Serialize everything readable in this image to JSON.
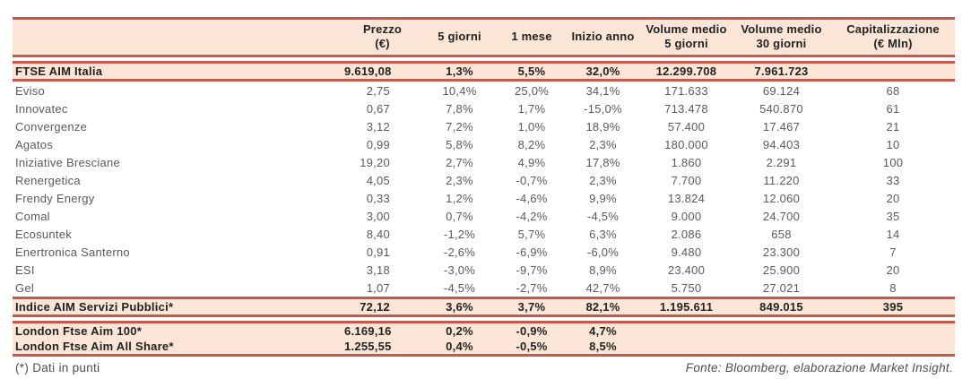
{
  "colors": {
    "accent_border": "#c7594c",
    "band_fill": "#fbe5d7",
    "regular_text": "#5a5a5c",
    "bold_text": "#222222"
  },
  "table": {
    "header": {
      "name_col": "",
      "cols": [
        {
          "line1": "Prezzo",
          "line2": "(€)"
        },
        {
          "line1": "5 giorni",
          "line2": ""
        },
        {
          "line1": "1 mese",
          "line2": ""
        },
        {
          "line1": "Inizio anno",
          "line2": ""
        },
        {
          "line1": "Volume medio",
          "line2": "5 giorni"
        },
        {
          "line1": "Volume medio",
          "line2": "30 giorni"
        },
        {
          "line1": "Capitalizzazione",
          "line2": "(€ Mln)"
        }
      ]
    },
    "sections": [
      {
        "type": "band",
        "gap_before": true,
        "rows": [
          {
            "name": "FTSE AIM Italia",
            "cells": [
              "9.619,08",
              "1,3%",
              "5,5%",
              "32,0%",
              "12.299.708",
              "7.961.723",
              ""
            ]
          }
        ]
      },
      {
        "type": "plain",
        "gap_before": false,
        "rows": [
          {
            "name": "Eviso",
            "cells": [
              "2,75",
              "10,4%",
              "25,0%",
              "34,1%",
              "171.633",
              "69.124",
              "68"
            ]
          },
          {
            "name": "Innovatec",
            "cells": [
              "0,67",
              "7,8%",
              "1,7%",
              "-15,0%",
              "713.478",
              "540.870",
              "61"
            ]
          },
          {
            "name": "Convergenze",
            "cells": [
              "3,12",
              "7,2%",
              "1,0%",
              "18,9%",
              "57.400",
              "17.467",
              "21"
            ]
          },
          {
            "name": "Agatos",
            "cells": [
              "0,99",
              "5,8%",
              "8,2%",
              "2,3%",
              "180.000",
              "94.403",
              "10"
            ]
          },
          {
            "name": "Iniziative Bresciane",
            "cells": [
              "19,20",
              "2,7%",
              "4,9%",
              "17,8%",
              "1.860",
              "2.291",
              "100"
            ]
          },
          {
            "name": "Renergetica",
            "cells": [
              "4,05",
              "2,3%",
              "-0,7%",
              "2,3%",
              "7.700",
              "11.220",
              "33"
            ]
          },
          {
            "name": "Frendy Energy",
            "cells": [
              "0,33",
              "1,2%",
              "-4,6%",
              "9,9%",
              "13.824",
              "12.060",
              "20"
            ]
          },
          {
            "name": "Comal",
            "cells": [
              "3,00",
              "0,7%",
              "-4,2%",
              "-4,5%",
              "9.000",
              "24.700",
              "35"
            ]
          },
          {
            "name": "Ecosuntek",
            "cells": [
              "8,40",
              "-1,2%",
              "5,7%",
              "6,3%",
              "2.086",
              "658",
              "14"
            ]
          },
          {
            "name": "Enertronica Santerno",
            "cells": [
              "0,91",
              "-2,6%",
              "-6,9%",
              "-6,0%",
              "9.480",
              "23.300",
              "7"
            ]
          },
          {
            "name": "ESI",
            "cells": [
              "3,18",
              "-3,0%",
              "-9,7%",
              "8,9%",
              "23.400",
              "25.900",
              "20"
            ]
          },
          {
            "name": "Gel",
            "cells": [
              "1,07",
              "-4,5%",
              "-2,7%",
              "42,7%",
              "5.750",
              "27.021",
              "8"
            ]
          }
        ]
      },
      {
        "type": "band",
        "gap_before": false,
        "rows": [
          {
            "name": "Indice AIM Servizi Pubblici*",
            "cells": [
              "72,12",
              "3,6%",
              "3,7%",
              "82,1%",
              "1.195.611",
              "849.015",
              "395"
            ]
          }
        ]
      },
      {
        "type": "band",
        "gap_before": true,
        "rows": [
          {
            "name": "London Ftse Aim 100*",
            "cells": [
              "6.169,16",
              "0,2%",
              "-0,9%",
              "4,7%",
              "",
              "",
              ""
            ]
          },
          {
            "name": "London Ftse Aim All Share*",
            "cells": [
              "1.255,55",
              "0,4%",
              "-0,5%",
              "8,5%",
              "",
              "",
              ""
            ]
          }
        ]
      }
    ],
    "footer": {
      "note": "(*) Dati in punti",
      "source": "Fonte: Bloomberg, elaborazione Market Insight."
    }
  }
}
